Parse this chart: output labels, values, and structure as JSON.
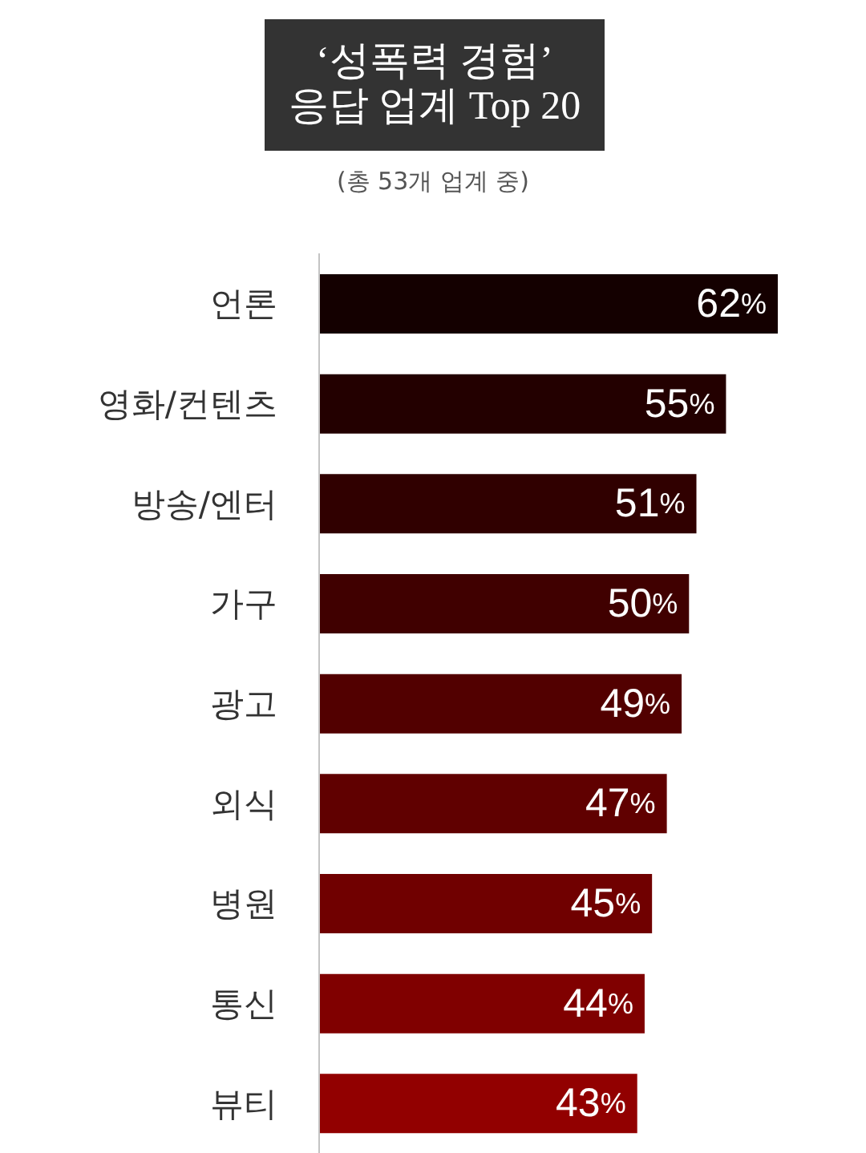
{
  "chart_data": {
    "type": "bar",
    "orientation": "horizontal",
    "title": "‘성폭력 경험’\n응답 업계 Top 20",
    "subtitle": "(총 53개 업계 중)",
    "categories": [
      "언론",
      "영화/컨텐츠",
      "방송/엔터",
      "가구",
      "광고",
      "외식",
      "병원",
      "통신",
      "뷰티"
    ],
    "values": [
      62,
      55,
      51,
      50,
      49,
      47,
      45,
      44,
      43
    ],
    "colors": [
      "#140000",
      "#230000",
      "#300000",
      "#400000",
      "#520000",
      "#600000",
      "#700000",
      "#800000",
      "#920000"
    ],
    "value_labels": [
      "62%",
      "55%",
      "51%",
      "50%",
      "49%",
      "47%",
      "45%",
      "44%",
      "43%"
    ]
  }
}
